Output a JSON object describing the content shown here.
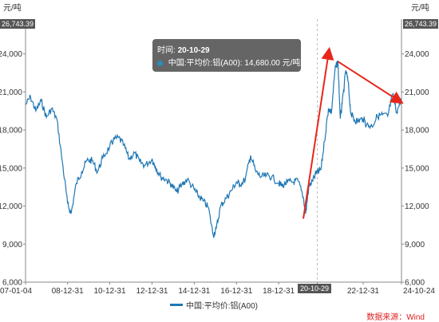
{
  "chart_data": {
    "type": "line",
    "unit_left": "元/吨",
    "unit_right": "元/吨",
    "ylim": [
      6000,
      26743.39
    ],
    "y_max_label": "26,743.39",
    "y_ticks": [
      "6,000",
      "9,000",
      "12,000",
      "15,000",
      "18,000",
      "21,000",
      "24,000"
    ],
    "x_ticks": [
      "07-01-04",
      "08-12-31",
      "10-12-31",
      "12-12-31",
      "14-12-31",
      "16-12-31",
      "18-12-31",
      "2020-10-29",
      "22-12-31",
      "24-10-24"
    ],
    "series": [
      {
        "name": "中国:平均价:铝(A00)",
        "color": "#1f77b4",
        "x": [
          "2007-01-04",
          "2007-04-01",
          "2007-07-01",
          "2007-10-01",
          "2008-01-01",
          "2008-04-01",
          "2008-07-01",
          "2008-10-01",
          "2008-12-31",
          "2009-03-01",
          "2009-06-01",
          "2009-09-01",
          "2009-12-01",
          "2010-03-01",
          "2010-06-01",
          "2010-09-01",
          "2010-12-31",
          "2011-03-01",
          "2011-06-01",
          "2011-09-01",
          "2011-12-01",
          "2012-03-01",
          "2012-06-01",
          "2012-09-01",
          "2012-12-31",
          "2013-03-01",
          "2013-06-01",
          "2013-09-01",
          "2013-12-01",
          "2014-03-01",
          "2014-06-01",
          "2014-09-01",
          "2014-12-31",
          "2015-03-01",
          "2015-06-01",
          "2015-09-01",
          "2015-11-25",
          "2016-01-15",
          "2016-04-01",
          "2016-07-01",
          "2016-10-01",
          "2016-12-31",
          "2017-03-01",
          "2017-06-01",
          "2017-09-01",
          "2017-12-01",
          "2018-03-01",
          "2018-06-01",
          "2018-09-01",
          "2018-12-31",
          "2019-03-01",
          "2019-06-01",
          "2019-09-01",
          "2019-12-01",
          "2020-03-01",
          "2020-04-10",
          "2020-06-01",
          "2020-08-01",
          "2020-10-29",
          "2021-01-01",
          "2021-03-01",
          "2021-05-10",
          "2021-07-01",
          "2021-09-01",
          "2021-10-20",
          "2021-12-01",
          "2022-01-01",
          "2022-03-07",
          "2022-04-15",
          "2022-06-01",
          "2022-08-01",
          "2022-10-01",
          "2022-12-31",
          "2023-03-01",
          "2023-06-01",
          "2023-09-01",
          "2023-12-01",
          "2024-03-01",
          "2024-05-25",
          "2024-08-01",
          "2024-10-24"
        ],
        "values": [
          20000,
          20600,
          19500,
          20300,
          19000,
          19700,
          18800,
          15500,
          12200,
          11400,
          13800,
          14700,
          15600,
          15600,
          14700,
          15800,
          16700,
          17200,
          17400,
          16800,
          15700,
          16200,
          15500,
          15200,
          15700,
          15100,
          14300,
          14100,
          13700,
          13100,
          13700,
          14100,
          13300,
          12900,
          12400,
          11900,
          9700,
          10200,
          12000,
          12600,
          13200,
          13900,
          13700,
          14100,
          16000,
          14700,
          14300,
          14400,
          14300,
          13800,
          13600,
          13900,
          13900,
          14000,
          12700,
          11400,
          13400,
          14000,
          14680,
          14900,
          17100,
          19700,
          19400,
          22800,
          23400,
          18900,
          20000,
          22700,
          21800,
          19300,
          18800,
          18700,
          18900,
          18400,
          18300,
          19100,
          19200,
          19100,
          20800,
          19400,
          20500
        ]
      }
    ],
    "tooltip": {
      "label": "时间:",
      "date": "20-10-29",
      "series": "中国:平均价:铝(A00)",
      "value": "14,680.00",
      "unit": "元/吨"
    }
  },
  "legend": {
    "label": "中国:平均价:铝(A00)"
  },
  "source": "数据来源：Wind",
  "colors": {
    "line": "#1f77b4",
    "arrow": "#e8261b",
    "axis": "#888888",
    "grid": "#eeeeee"
  }
}
